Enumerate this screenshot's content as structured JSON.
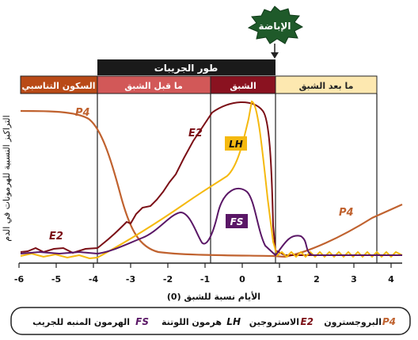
{
  "ovulation": {
    "label": "الإباضة"
  },
  "phases": {
    "follicular_header": "طور الجريبات",
    "anestrus": "السكون التناسبي",
    "pre_estrus": "ما قبل الشبق",
    "estrus": "الشبق",
    "post_estrus": "ما بعد الشبق"
  },
  "axes": {
    "ylabel": "التراكيز النسبية للهرمونات في الدم",
    "xlabel": "الأيام نسبة للشبق (0)",
    "ticks": [
      "-6",
      "-5",
      "-4",
      "-3",
      "-2",
      "-1",
      "0",
      "1",
      "2",
      "3",
      "4"
    ]
  },
  "curve_labels": {
    "p4_left": "P4",
    "p4_right": "P4",
    "e2_top": "E2",
    "e2_low": "E2",
    "lh": "LH",
    "fs": "FS"
  },
  "legend": {
    "p4_code": "P4",
    "p4_name": "البروجسترون",
    "e2_code": "E2",
    "e2_name": "الاستروجين",
    "lh_code": "LH",
    "lh_name": "هرمون اللوتنة",
    "fs_code": "FS",
    "fs_name": "الهرمون المنبه للجريب"
  },
  "colors": {
    "p4": "#c0622f",
    "e2": "#7b0f16",
    "lh": "#f5b90f",
    "fs": "#5a1766",
    "anestrus": "#b94a17",
    "pre_estrus": "#d25858",
    "estrus": "#8a1220",
    "post_estrus": "#fde8b0",
    "header": "#1a1a1a",
    "ovulation": "#1f5a2a"
  }
}
